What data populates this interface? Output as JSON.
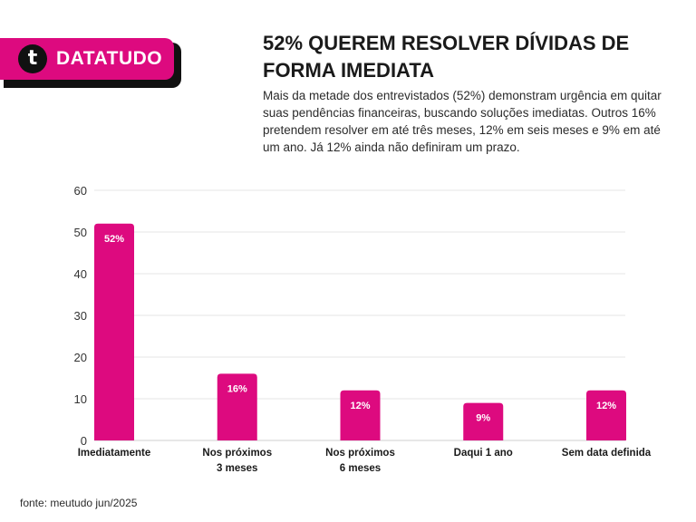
{
  "brand": {
    "logo_glyph": "t",
    "name": "DATATUDO"
  },
  "header": {
    "title": "52% QUEREM RESOLVER DÍVIDAS DE FORMA IMEDIATA",
    "subtitle": "Mais da metade dos entrevistados (52%) demonstram urgência em quitar suas pendências financeiras, buscando soluções imediatas. Outros 16% pretendem resolver em até três meses, 12% em seis meses e 9% em até um ano. Já 12% ainda não definiram um prazo."
  },
  "chart_data": {
    "type": "bar",
    "categories": [
      "Imediatamente",
      "Nos próximos 3 meses",
      "Nos próximos 6 meses",
      "Daqui 1 ano",
      "Sem data definida"
    ],
    "category_lines": [
      [
        "Imediatamente"
      ],
      [
        "Nos próximos",
        "3 meses"
      ],
      [
        "Nos próximos",
        "6 meses"
      ],
      [
        "Daqui 1 ano"
      ],
      [
        "Sem data definida"
      ]
    ],
    "values": [
      52,
      16,
      12,
      9,
      12
    ],
    "data_labels": [
      "52%",
      "16%",
      "12%",
      "9%",
      "12%"
    ],
    "ylim": [
      0,
      60
    ],
    "yticks": [
      0,
      10,
      20,
      30,
      40,
      50,
      60
    ],
    "grid": true,
    "bar_color": "#dd0a7f"
  },
  "footer": {
    "source": "fonte: meutudo jun/2025"
  }
}
